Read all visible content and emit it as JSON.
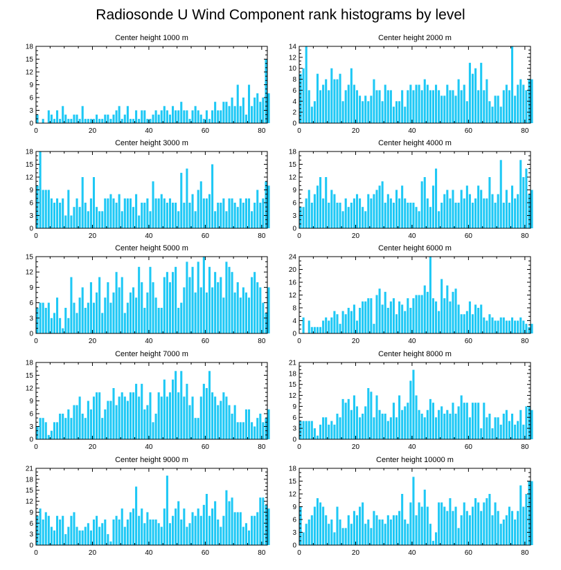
{
  "title": "Radiosonde U Wind Component rank histograms by level",
  "colors": {
    "bar": "#1ec8f5",
    "axis": "#000000"
  },
  "chart_data": [
    {
      "type": "bar",
      "title": "Center height 1000 m",
      "xlim": [
        0,
        82
      ],
      "ylim": [
        0,
        18
      ],
      "xticks": [
        0,
        20,
        40,
        60,
        80
      ],
      "yticks": [
        0,
        3,
        6,
        9,
        12,
        15,
        18
      ],
      "values": [
        2,
        0,
        1,
        0,
        3,
        2,
        1,
        3,
        1,
        4,
        2,
        1,
        1,
        2,
        2,
        1,
        4,
        1,
        1,
        1,
        1,
        2,
        1,
        1,
        2,
        2,
        1,
        2,
        3,
        4,
        1,
        2,
        4,
        1,
        1,
        3,
        1,
        3,
        3,
        1,
        1,
        2,
        3,
        2,
        3,
        4,
        3,
        2,
        4,
        3,
        3,
        5,
        3,
        3,
        1,
        3,
        4,
        3,
        2,
        1,
        3,
        1,
        3,
        5,
        3,
        3,
        5,
        5,
        4,
        6,
        4,
        9,
        4,
        6,
        2,
        9,
        4,
        6,
        7,
        5,
        6,
        15,
        7
      ]
    },
    {
      "type": "bar",
      "title": "Center height 2000 m",
      "xlim": [
        0,
        82
      ],
      "ylim": [
        0,
        14
      ],
      "xticks": [
        0,
        20,
        40,
        60,
        80
      ],
      "yticks": [
        0,
        2,
        4,
        6,
        8,
        10,
        12,
        14
      ],
      "values": [
        9,
        10,
        14,
        6,
        3,
        4,
        9,
        6,
        7,
        8,
        6,
        10,
        8,
        8,
        9,
        4,
        6,
        7,
        10,
        7,
        6,
        5,
        4,
        5,
        4,
        5,
        8,
        6,
        6,
        4,
        7,
        6,
        6,
        3,
        4,
        4,
        6,
        3,
        6,
        7,
        6,
        7,
        7,
        6,
        8,
        7,
        6,
        6,
        7,
        6,
        5,
        5,
        7,
        6,
        6,
        5,
        8,
        6,
        7,
        4,
        11,
        9,
        10,
        6,
        11,
        6,
        8,
        4,
        3,
        5,
        5,
        3,
        6,
        7,
        6,
        14,
        5,
        7,
        8,
        7,
        6,
        8,
        8
      ]
    },
    {
      "type": "bar",
      "title": "Center height 3000 m",
      "xlim": [
        0,
        82
      ],
      "ylim": [
        0,
        18
      ],
      "xticks": [
        0,
        20,
        40,
        60,
        80
      ],
      "yticks": [
        0,
        3,
        6,
        9,
        12,
        15,
        18
      ],
      "values": [
        10,
        18,
        9,
        9,
        9,
        7,
        6,
        7,
        6,
        7,
        3,
        9,
        3,
        5,
        7,
        5,
        12,
        6,
        4,
        7,
        12,
        5,
        4,
        4,
        7,
        7,
        8,
        7,
        6,
        8,
        4,
        7,
        7,
        7,
        5,
        8,
        3,
        6,
        6,
        7,
        4,
        11,
        7,
        7,
        8,
        7,
        6,
        7,
        6,
        6,
        4,
        13,
        6,
        14,
        6,
        8,
        4,
        9,
        11,
        7,
        7,
        8,
        15,
        4,
        6,
        6,
        7,
        4,
        7,
        7,
        6,
        5,
        7,
        6,
        7,
        7,
        4,
        6,
        9,
        6,
        7,
        11,
        10
      ]
    },
    {
      "type": "bar",
      "title": "Center height 4000 m",
      "xlim": [
        0,
        82
      ],
      "ylim": [
        0,
        18
      ],
      "xticks": [
        0,
        20,
        40,
        60,
        80
      ],
      "yticks": [
        0,
        3,
        6,
        9,
        12,
        15,
        18
      ],
      "values": [
        5,
        5,
        7,
        9,
        6,
        8,
        10,
        12,
        7,
        12,
        6,
        9,
        8,
        6,
        6,
        4,
        7,
        5,
        6,
        7,
        8,
        7,
        5,
        4,
        8,
        7,
        8,
        9,
        10,
        11,
        6,
        8,
        7,
        6,
        9,
        7,
        10,
        7,
        6,
        6,
        6,
        5,
        4,
        11,
        12,
        7,
        5,
        10,
        14,
        4,
        6,
        8,
        9,
        7,
        9,
        6,
        6,
        9,
        7,
        10,
        8,
        6,
        7,
        10,
        9,
        7,
        7,
        12,
        8,
        6,
        8,
        16,
        6,
        9,
        6,
        10,
        7,
        8,
        16,
        12,
        14,
        8,
        9
      ]
    },
    {
      "type": "bar",
      "title": "Center height 5000 m",
      "xlim": [
        0,
        82
      ],
      "ylim": [
        0,
        15
      ],
      "xticks": [
        0,
        20,
        40,
        60,
        80
      ],
      "yticks": [
        0,
        3,
        6,
        9,
        12,
        15
      ],
      "values": [
        5,
        6,
        6,
        5,
        6,
        3,
        4,
        7,
        3,
        1,
        5,
        3,
        11,
        6,
        4,
        7,
        9,
        5,
        6,
        10,
        6,
        8,
        11,
        4,
        7,
        10,
        6,
        8,
        12,
        9,
        11,
        4,
        6,
        8,
        9,
        7,
        13,
        10,
        5,
        8,
        13,
        10,
        7,
        5,
        5,
        11,
        12,
        10,
        12,
        13,
        5,
        6,
        9,
        14,
        11,
        13,
        8,
        14,
        9,
        15,
        8,
        13,
        9,
        12,
        10,
        11,
        7,
        14,
        13,
        12,
        8,
        10,
        7,
        9,
        8,
        7,
        11,
        12,
        10,
        9,
        6,
        4,
        9
      ]
    },
    {
      "type": "bar",
      "title": "Center height 6000 m",
      "xlim": [
        0,
        82
      ],
      "ylim": [
        0,
        24
      ],
      "xticks": [
        0,
        20,
        40,
        60,
        80
      ],
      "yticks": [
        0,
        4,
        8,
        12,
        16,
        20,
        24
      ],
      "values": [
        0,
        5,
        0,
        4,
        2,
        2,
        2,
        2,
        4,
        5,
        4,
        5,
        7,
        6,
        3,
        7,
        6,
        8,
        7,
        9,
        4,
        8,
        10,
        10,
        11,
        11,
        3,
        12,
        14,
        9,
        13,
        8,
        10,
        11,
        6,
        10,
        9,
        7,
        11,
        8,
        11,
        12,
        12,
        12,
        15,
        13,
        24,
        11,
        10,
        7,
        17,
        11,
        15,
        10,
        13,
        14,
        9,
        6,
        6,
        7,
        10,
        6,
        9,
        8,
        9,
        5,
        4,
        6,
        5,
        4,
        4,
        5,
        5,
        4,
        4,
        5,
        4,
        4,
        5,
        4,
        3,
        2,
        3
      ]
    },
    {
      "type": "bar",
      "title": "Center height 7000 m",
      "xlim": [
        0,
        82
      ],
      "ylim": [
        0,
        18
      ],
      "xticks": [
        0,
        20,
        40,
        60,
        80
      ],
      "yticks": [
        0,
        3,
        6,
        9,
        12,
        15,
        18
      ],
      "values": [
        3,
        5,
        5,
        4,
        1,
        2,
        4,
        4,
        6,
        6,
        5,
        7,
        5,
        8,
        8,
        10,
        6,
        5,
        9,
        7,
        10,
        11,
        11,
        5,
        7,
        9,
        9,
        12,
        8,
        10,
        11,
        10,
        9,
        11,
        11,
        13,
        10,
        13,
        7,
        8,
        11,
        4,
        6,
        11,
        10,
        14,
        10,
        11,
        14,
        16,
        11,
        16,
        10,
        13,
        8,
        10,
        5,
        5,
        10,
        13,
        12,
        16,
        11,
        10,
        8,
        9,
        11,
        10,
        8,
        6,
        8,
        4,
        4,
        4,
        7,
        7,
        4,
        3,
        5,
        6,
        4,
        5,
        7
      ]
    },
    {
      "type": "bar",
      "title": "Center height 8000 m",
      "xlim": [
        0,
        82
      ],
      "ylim": [
        0,
        21
      ],
      "xticks": [
        0,
        20,
        40,
        60,
        80
      ],
      "yticks": [
        0,
        3,
        6,
        9,
        12,
        15,
        18,
        21
      ],
      "values": [
        5,
        5,
        5,
        5,
        5,
        3,
        1,
        4,
        6,
        6,
        4,
        5,
        4,
        7,
        6,
        11,
        10,
        11,
        8,
        12,
        9,
        6,
        7,
        9,
        14,
        13,
        6,
        12,
        8,
        7,
        7,
        5,
        6,
        10,
        6,
        12,
        8,
        9,
        10,
        16,
        19,
        12,
        8,
        7,
        6,
        8,
        11,
        10,
        6,
        8,
        9,
        7,
        8,
        7,
        10,
        7,
        9,
        12,
        10,
        10,
        6,
        10,
        10,
        10,
        3,
        10,
        6,
        7,
        3,
        6,
        6,
        4,
        7,
        8,
        5,
        7,
        4,
        5,
        8,
        4,
        9,
        9,
        8
      ]
    },
    {
      "type": "bar",
      "title": "Center height 9000 m",
      "xlim": [
        0,
        82
      ],
      "ylim": [
        0,
        21
      ],
      "xticks": [
        0,
        20,
        40,
        60,
        80
      ],
      "yticks": [
        0,
        3,
        6,
        9,
        12,
        15,
        18,
        21
      ],
      "values": [
        8,
        10,
        7,
        9,
        8,
        5,
        4,
        8,
        7,
        8,
        3,
        5,
        8,
        9,
        5,
        4,
        4,
        5,
        6,
        4,
        7,
        8,
        5,
        6,
        7,
        3,
        1,
        7,
        8,
        7,
        10,
        5,
        7,
        9,
        10,
        16,
        8,
        10,
        6,
        9,
        7,
        7,
        7,
        6,
        5,
        10,
        19,
        6,
        8,
        10,
        12,
        7,
        10,
        5,
        6,
        9,
        8,
        10,
        8,
        11,
        14,
        8,
        10,
        12,
        7,
        5,
        8,
        15,
        12,
        13,
        9,
        9,
        9,
        5,
        6,
        4,
        8,
        8,
        9,
        13,
        13,
        11,
        10
      ]
    },
    {
      "type": "bar",
      "title": "Center height 10000 m",
      "xlim": [
        0,
        82
      ],
      "ylim": [
        0,
        18
      ],
      "xticks": [
        0,
        20,
        40,
        60,
        80
      ],
      "yticks": [
        0,
        3,
        6,
        9,
        12,
        15,
        18
      ],
      "values": [
        9,
        3,
        5,
        6,
        7,
        9,
        11,
        10,
        9,
        7,
        5,
        6,
        3,
        9,
        6,
        4,
        4,
        7,
        5,
        8,
        7,
        9,
        10,
        5,
        6,
        4,
        8,
        7,
        6,
        6,
        5,
        7,
        6,
        7,
        7,
        8,
        12,
        6,
        5,
        10,
        16,
        7,
        10,
        9,
        13,
        9,
        5,
        1,
        3,
        10,
        10,
        9,
        8,
        11,
        8,
        9,
        4,
        7,
        10,
        8,
        7,
        9,
        11,
        10,
        8,
        10,
        11,
        12,
        7,
        10,
        8,
        5,
        6,
        7,
        9,
        8,
        6,
        8,
        14,
        9,
        12,
        15,
        15
      ]
    }
  ]
}
